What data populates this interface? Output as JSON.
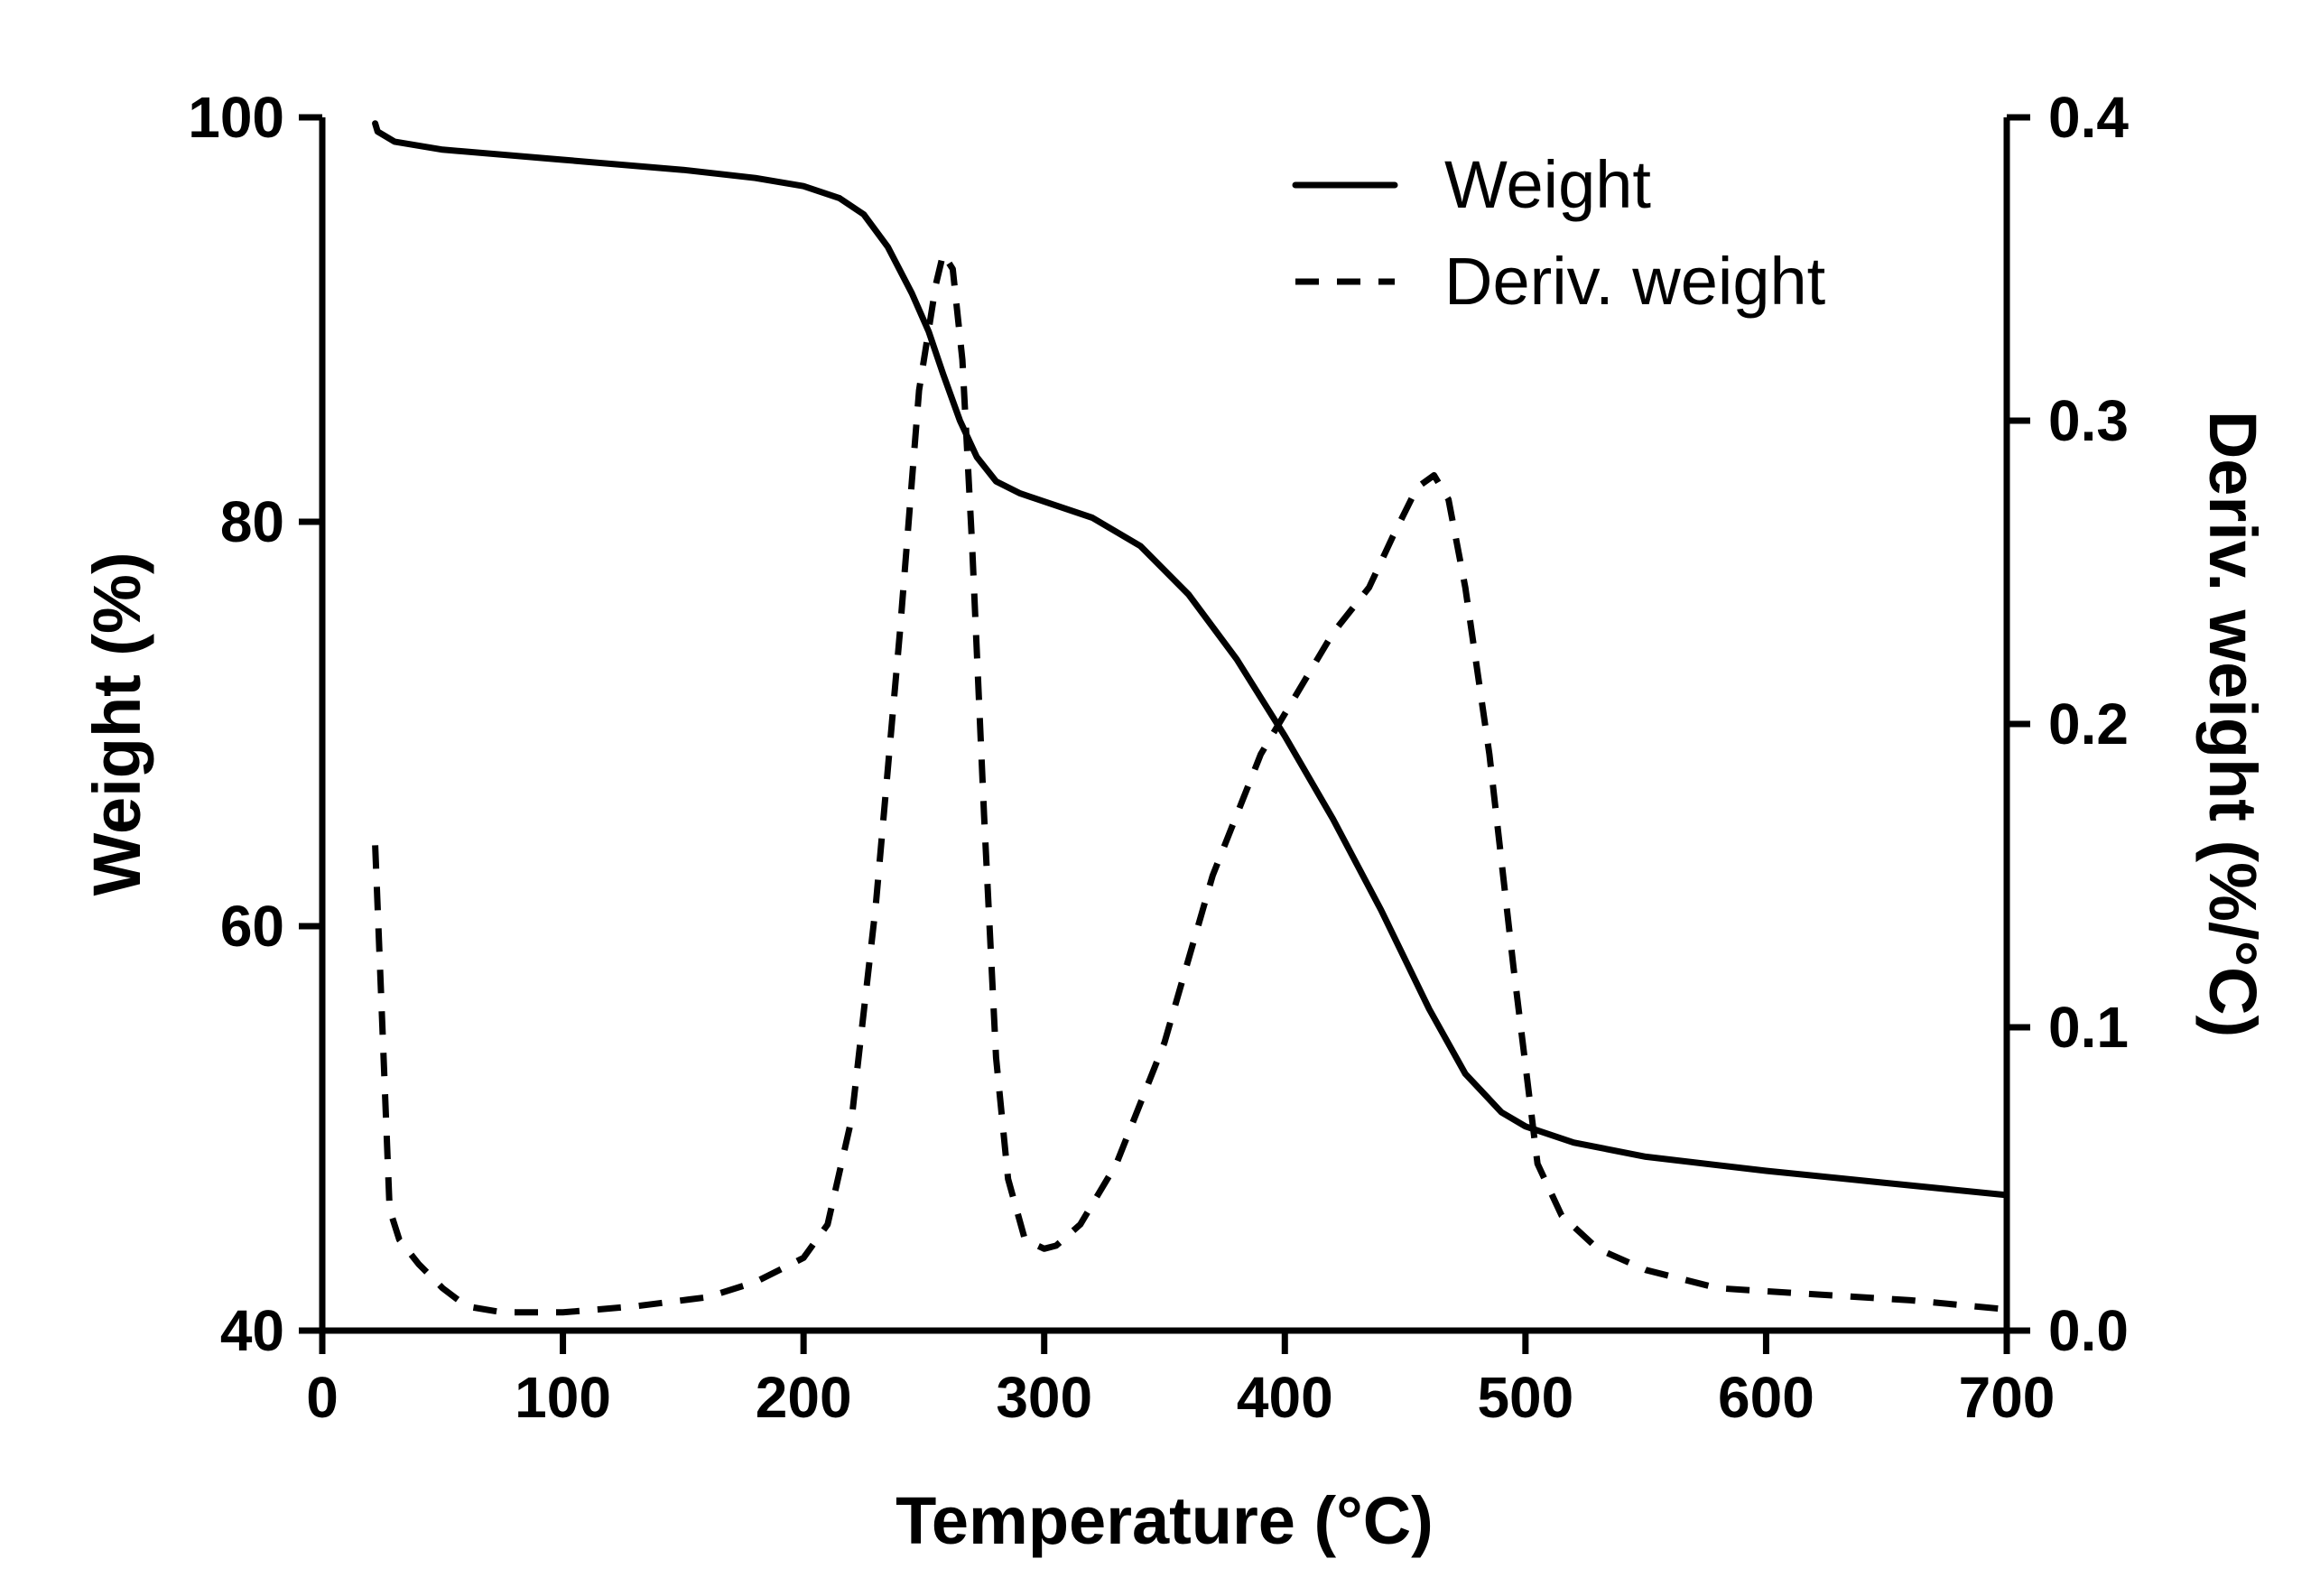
{
  "chart_data": {
    "type": "line",
    "title": "",
    "xlabel": "Temperature (°C)",
    "ylabel": "Weight (%)",
    "y2label": "Deriv. weight (%/°C)",
    "xlim": [
      0,
      700
    ],
    "ylim": [
      40,
      100
    ],
    "y2lim": [
      0.0,
      0.4
    ],
    "x_ticks": [
      "0",
      "100",
      "200",
      "300",
      "400",
      "500",
      "600",
      "700"
    ],
    "y_ticks": [
      "40",
      "60",
      "80",
      "100"
    ],
    "y2_ticks": [
      "0.0",
      "0.1",
      "0.2",
      "0.3",
      "0.4"
    ],
    "grid": false,
    "legend_position": "top-right",
    "legend": [
      {
        "name": "Weight",
        "style": "solid"
      },
      {
        "name": "Deriv. weight",
        "style": "dashed"
      }
    ],
    "series": [
      {
        "name": "Weight",
        "axis": "left",
        "style": "solid",
        "x": [
          22,
          23,
          30,
          50,
          100,
          150,
          180,
          200,
          215,
          225,
          235,
          245,
          252,
          258,
          265,
          272,
          280,
          290,
          300,
          320,
          340,
          360,
          380,
          400,
          420,
          440,
          460,
          475,
          490,
          500,
          520,
          550,
          600,
          650,
          700
        ],
        "values": [
          99.7,
          99.3,
          98.8,
          98.4,
          97.9,
          97.4,
          97.0,
          96.6,
          96.0,
          95.2,
          93.6,
          91.3,
          89.4,
          87.3,
          85.0,
          83.2,
          82.0,
          81.4,
          81.0,
          80.2,
          78.8,
          76.4,
          73.2,
          69.4,
          65.3,
          60.8,
          55.9,
          52.7,
          50.8,
          50.1,
          49.3,
          48.6,
          47.9,
          47.3,
          46.7
        ]
      },
      {
        "name": "Deriv. weight",
        "axis": "right",
        "style": "dashed",
        "x": [
          22,
          25,
          28,
          32,
          40,
          50,
          60,
          75,
          100,
          130,
          160,
          180,
          200,
          210,
          220,
          230,
          240,
          248,
          255,
          258,
          262,
          266,
          270,
          275,
          280,
          285,
          292,
          300,
          305,
          315,
          330,
          350,
          370,
          390,
          405,
          420,
          435,
          445,
          455,
          462,
          468,
          475,
          485,
          495,
          505,
          515,
          530,
          550,
          580,
          620,
          660,
          700
        ],
        "values": [
          0.16,
          0.1,
          0.04,
          0.03,
          0.022,
          0.014,
          0.008,
          0.006,
          0.006,
          0.008,
          0.011,
          0.016,
          0.024,
          0.035,
          0.07,
          0.14,
          0.23,
          0.31,
          0.345,
          0.355,
          0.35,
          0.32,
          0.26,
          0.17,
          0.09,
          0.05,
          0.03,
          0.027,
          0.028,
          0.035,
          0.055,
          0.095,
          0.15,
          0.19,
          0.21,
          0.23,
          0.245,
          0.262,
          0.278,
          0.282,
          0.274,
          0.245,
          0.19,
          0.12,
          0.055,
          0.038,
          0.027,
          0.02,
          0.014,
          0.012,
          0.01,
          0.007
        ]
      }
    ]
  }
}
